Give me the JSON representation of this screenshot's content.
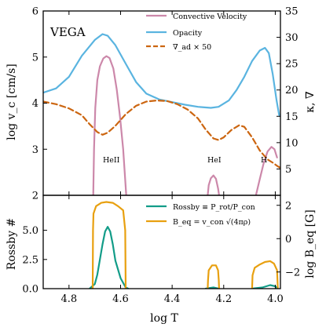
{
  "chart_data": [
    {
      "panel": "top",
      "type": "line",
      "title": "VEGA",
      "xlabel": "",
      "ylabel_left": "log v_c [cm/s]",
      "ylabel_right": "κ, ∇",
      "xlim": [
        4.9,
        3.98
      ],
      "ylim_left": [
        2,
        6
      ],
      "ylim_right": [
        0,
        35
      ],
      "x_ticks": [
        4.8,
        4.6,
        4.4,
        4.2,
        4.0
      ],
      "y_ticks_left": [
        "2",
        "3",
        "4",
        "5",
        "6"
      ],
      "y_ticks_right": [
        "5",
        "10",
        "15",
        "20",
        "25",
        "30",
        "35"
      ],
      "legend_position": "top-right",
      "annotations": [
        "HeII",
        "HeI",
        "H"
      ],
      "series": [
        {
          "name": "Convective Velocity",
          "axis": "left",
          "color": "#cc88aa",
          "style": "solid",
          "segments": [
            [
              [
                4.706,
                2.0
              ],
              [
                4.703,
                3.0
              ],
              [
                4.698,
                3.9
              ],
              [
                4.69,
                4.5
              ],
              [
                4.68,
                4.8
              ],
              [
                4.667,
                4.97
              ],
              [
                4.655,
                5.02
              ],
              [
                4.643,
                4.98
              ],
              [
                4.628,
                4.75
              ],
              [
                4.615,
                4.3
              ],
              [
                4.602,
                3.7
              ],
              [
                4.59,
                3.0
              ],
              [
                4.578,
                2.0
              ]
            ],
            [
              [
                4.262,
                2.0
              ],
              [
                4.258,
                2.22
              ],
              [
                4.25,
                2.37
              ],
              [
                4.24,
                2.43
              ],
              [
                4.23,
                2.36
              ],
              [
                4.222,
                2.15
              ],
              [
                4.218,
                2.0
              ]
            ],
            [
              [
                4.075,
                2.0
              ],
              [
                4.06,
                2.35
              ],
              [
                4.045,
                2.7
              ],
              [
                4.03,
                2.95
              ],
              [
                4.015,
                3.05
              ],
              [
                4.003,
                3.0
              ],
              [
                3.993,
                2.82
              ]
            ]
          ]
        },
        {
          "name": "Opacity",
          "axis": "right",
          "color": "#5ab4e0",
          "style": "solid",
          "points": [
            [
              4.9,
              19.5
            ],
            [
              4.85,
              20.3
            ],
            [
              4.8,
              22.5
            ],
            [
              4.75,
              26.5
            ],
            [
              4.7,
              29.5
            ],
            [
              4.67,
              30.6
            ],
            [
              4.65,
              30.3
            ],
            [
              4.62,
              28.5
            ],
            [
              4.58,
              25.0
            ],
            [
              4.54,
              21.5
            ],
            [
              4.5,
              19.3
            ],
            [
              4.45,
              18.2
            ],
            [
              4.4,
              17.7
            ],
            [
              4.35,
              17.2
            ],
            [
              4.3,
              16.8
            ],
            [
              4.25,
              16.6
            ],
            [
              4.22,
              16.8
            ],
            [
              4.18,
              18.0
            ],
            [
              4.15,
              20.0
            ],
            [
              4.12,
              22.5
            ],
            [
              4.09,
              25.5
            ],
            [
              4.06,
              27.5
            ],
            [
              4.04,
              28.0
            ],
            [
              4.025,
              27.0
            ],
            [
              4.01,
              23.0
            ],
            [
              3.995,
              18.0
            ],
            [
              3.985,
              15.2
            ]
          ]
        },
        {
          "name": "∇_ad × 50",
          "axis": "right",
          "color": "#cc6611",
          "style": "dashed",
          "points": [
            [
              4.9,
              17.8
            ],
            [
              4.85,
              17.3
            ],
            [
              4.8,
              16.5
            ],
            [
              4.75,
              15.2
            ],
            [
              4.72,
              13.5
            ],
            [
              4.69,
              12.0
            ],
            [
              4.67,
              11.5
            ],
            [
              4.65,
              11.9
            ],
            [
              4.62,
              13.2
            ],
            [
              4.58,
              15.4
            ],
            [
              4.54,
              17.0
            ],
            [
              4.5,
              17.8
            ],
            [
              4.46,
              18.0
            ],
            [
              4.42,
              17.9
            ],
            [
              4.38,
              17.3
            ],
            [
              4.34,
              16.3
            ],
            [
              4.3,
              14.6
            ],
            [
              4.27,
              12.5
            ],
            [
              4.24,
              10.8
            ],
            [
              4.22,
              10.5
            ],
            [
              4.2,
              11.0
            ],
            [
              4.17,
              12.4
            ],
            [
              4.14,
              13.3
            ],
            [
              4.12,
              13.0
            ],
            [
              4.09,
              11.0
            ],
            [
              4.06,
              8.5
            ],
            [
              4.03,
              6.8
            ],
            [
              4.01,
              6.2
            ],
            [
              3.99,
              5.5
            ],
            [
              3.98,
              5.2
            ]
          ]
        }
      ]
    },
    {
      "panel": "bottom",
      "type": "line",
      "xlabel": "log T",
      "ylabel_left": "Rossby #",
      "ylabel_right": "log B_eq [G]",
      "xlim": [
        4.9,
        3.98
      ],
      "ylim_left": [
        0,
        8
      ],
      "ylim_right": [
        -3.0,
        2.6
      ],
      "x_ticks": [
        "4.8",
        "4.6",
        "4.4",
        "4.2",
        "4.0"
      ],
      "y_ticks_left": [
        "0.0",
        "2.5",
        "5.0"
      ],
      "y_ticks_right": [
        "−2",
        "0",
        "2"
      ],
      "legend_position": "top-right",
      "series": [
        {
          "name": "Rossby ≡ P_rot/P_con",
          "axis": "left",
          "color": "#129c88",
          "style": "solid",
          "segments": [
            [
              [
                4.72,
                0.0
              ],
              [
                4.7,
                0.4
              ],
              [
                4.69,
                1.2
              ],
              [
                4.68,
                2.5
              ],
              [
                4.67,
                3.8
              ],
              [
                4.66,
                4.9
              ],
              [
                4.65,
                5.3
              ],
              [
                4.64,
                4.9
              ],
              [
                4.63,
                3.8
              ],
              [
                4.62,
                2.4
              ],
              [
                4.6,
                0.9
              ],
              [
                4.58,
                0.1
              ],
              [
                4.57,
                0.0
              ]
            ],
            [
              [
                4.27,
                0.0
              ],
              [
                4.24,
                0.1
              ],
              [
                4.22,
                0.0
              ]
            ],
            [
              [
                4.09,
                0.0
              ],
              [
                4.05,
                0.1
              ],
              [
                4.02,
                0.3
              ],
              [
                4.0,
                0.2
              ],
              [
                3.99,
                0.0
              ]
            ]
          ]
        },
        {
          "name": "B_eq = v_con √(4πρ)",
          "axis": "right",
          "color": "#e8a010",
          "style": "solid",
          "segments": [
            [
              [
                4.708,
                -3.0
              ],
              [
                4.707,
                0.5
              ],
              [
                4.705,
                1.5
              ],
              [
                4.695,
                1.95
              ],
              [
                4.675,
                2.15
              ],
              [
                4.655,
                2.2
              ],
              [
                4.63,
                2.15
              ],
              [
                4.61,
                1.95
              ],
              [
                4.59,
                1.7
              ],
              [
                4.582,
                0.5
              ],
              [
                4.58,
                -3.0
              ]
            ],
            [
              [
                4.262,
                -3.0
              ],
              [
                4.261,
                -2.5
              ],
              [
                4.258,
                -1.9
              ],
              [
                4.245,
                -1.6
              ],
              [
                4.23,
                -1.6
              ],
              [
                4.222,
                -1.9
              ],
              [
                4.219,
                -2.5
              ],
              [
                4.218,
                -3.0
              ]
            ],
            [
              [
                4.09,
                -3.0
              ],
              [
                4.088,
                -2.2
              ],
              [
                4.08,
                -1.75
              ],
              [
                4.06,
                -1.55
              ],
              [
                4.04,
                -1.4
              ],
              [
                4.02,
                -1.35
              ],
              [
                4.005,
                -1.5
              ],
              [
                3.993,
                -1.9
              ],
              [
                3.99,
                -3.0
              ]
            ]
          ]
        }
      ]
    }
  ],
  "palette": {
    "axis": "#000000",
    "background": "#ffffff"
  }
}
